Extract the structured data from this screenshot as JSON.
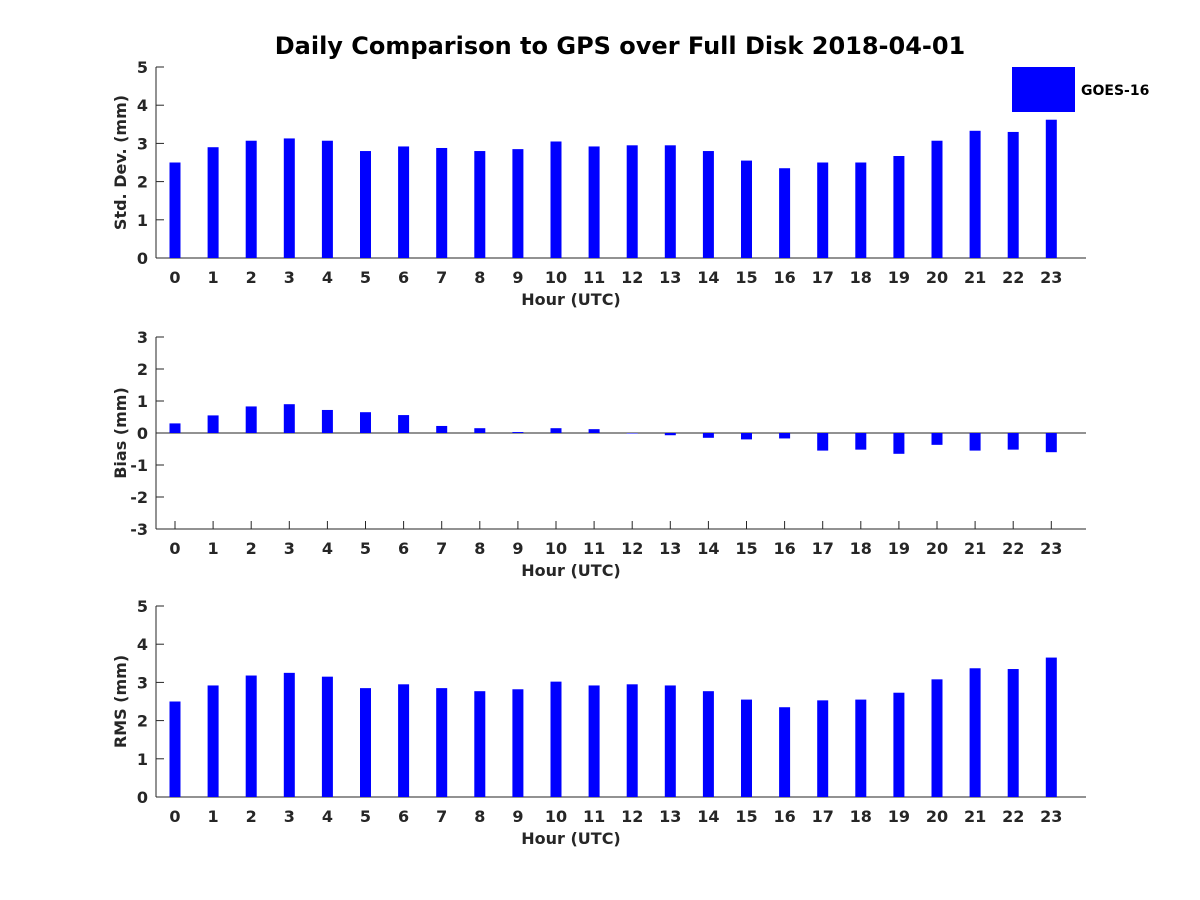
{
  "title": "Daily Comparison to GPS over Full Disk 2018-04-01",
  "chart_data": [
    {
      "type": "bar",
      "id": "std",
      "title": "Daily Comparison to GPS over Full Disk 2018-04-01",
      "xlabel": "Hour (UTC)",
      "ylabel": "Std. Dev. (mm)",
      "categories": [
        "0",
        "1",
        "2",
        "3",
        "4",
        "5",
        "6",
        "7",
        "8",
        "9",
        "10",
        "11",
        "12",
        "13",
        "14",
        "15",
        "16",
        "17",
        "18",
        "19",
        "20",
        "21",
        "22",
        "23"
      ],
      "yticks": [
        0,
        1,
        2,
        3,
        4,
        5
      ],
      "ylim": [
        0,
        5
      ],
      "series": [
        {
          "name": "GOES-16",
          "color": "#0000ff",
          "values": [
            2.5,
            2.9,
            3.07,
            3.13,
            3.07,
            2.8,
            2.92,
            2.88,
            2.8,
            2.85,
            3.05,
            2.92,
            2.95,
            2.95,
            2.8,
            2.55,
            2.35,
            2.5,
            2.5,
            2.67,
            3.07,
            3.33,
            3.3,
            3.62
          ]
        }
      ],
      "legend": {
        "position": "top-right",
        "label": "GOES-16"
      },
      "grid": false
    },
    {
      "type": "bar",
      "id": "bias",
      "xlabel": "Hour (UTC)",
      "ylabel": "Bias (mm)",
      "categories": [
        "0",
        "1",
        "2",
        "3",
        "4",
        "5",
        "6",
        "7",
        "8",
        "9",
        "10",
        "11",
        "12",
        "13",
        "14",
        "15",
        "16",
        "17",
        "18",
        "19",
        "20",
        "21",
        "22",
        "23"
      ],
      "yticks": [
        -3,
        -2,
        -1,
        0,
        1,
        2,
        3
      ],
      "ylim": [
        -3,
        3
      ],
      "series": [
        {
          "name": "GOES-16",
          "color": "#0000ff",
          "values": [
            0.3,
            0.55,
            0.83,
            0.9,
            0.72,
            0.65,
            0.56,
            0.22,
            0.15,
            0.03,
            0.15,
            0.12,
            -0.01,
            -0.07,
            -0.15,
            -0.2,
            -0.17,
            -0.55,
            -0.52,
            -0.65,
            -0.37,
            -0.55,
            -0.52,
            -0.6
          ]
        }
      ],
      "zero_line": true,
      "grid": false
    },
    {
      "type": "bar",
      "id": "rms",
      "xlabel": "Hour (UTC)",
      "ylabel": "RMS (mm)",
      "categories": [
        "0",
        "1",
        "2",
        "3",
        "4",
        "5",
        "6",
        "7",
        "8",
        "9",
        "10",
        "11",
        "12",
        "13",
        "14",
        "15",
        "16",
        "17",
        "18",
        "19",
        "20",
        "21",
        "22",
        "23"
      ],
      "yticks": [
        0,
        1,
        2,
        3,
        4,
        5
      ],
      "ylim": [
        0,
        5
      ],
      "series": [
        {
          "name": "GOES-16",
          "color": "#0000ff",
          "values": [
            2.5,
            2.92,
            3.18,
            3.25,
            3.15,
            2.85,
            2.95,
            2.85,
            2.77,
            2.82,
            3.02,
            2.92,
            2.95,
            2.92,
            2.77,
            2.55,
            2.35,
            2.53,
            2.55,
            2.73,
            3.08,
            3.37,
            3.35,
            3.65
          ]
        }
      ],
      "grid": false
    }
  ]
}
